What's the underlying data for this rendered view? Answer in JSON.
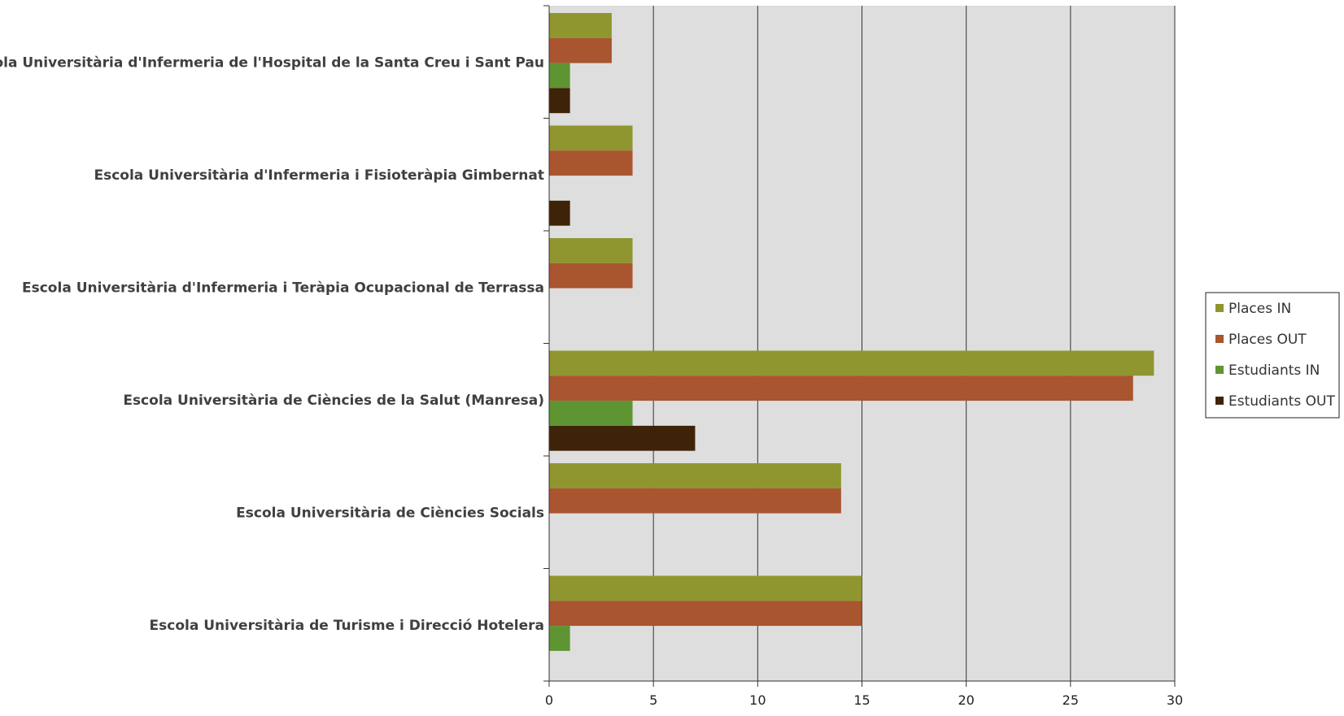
{
  "chart_data": {
    "type": "bar",
    "orientation": "horizontal",
    "categories": [
      "Escola Universitària d'Infermeria de l'Hospital de la Santa Creu i Sant Pau",
      "Escola Universitària d'Infermeria i Fisioteràpia Gimbernat",
      "Escola Universitària d'Infermeria i  Teràpia Ocupacional de Terrassa",
      "Escola Universitària de Ciències de la Salut (Manresa)",
      "Escola Universitària de Ciències Socials",
      "Escola Universitària de Turisme i Direcció Hotelera"
    ],
    "series": [
      {
        "name": "Places IN",
        "color": "#8f962f",
        "values": [
          3,
          4,
          4,
          29,
          14,
          15
        ]
      },
      {
        "name": "Places OUT",
        "color": "#a9552f",
        "values": [
          3,
          4,
          4,
          28,
          14,
          15
        ]
      },
      {
        "name": "Estudiants IN",
        "color": "#5f9433",
        "values": [
          1,
          0,
          0,
          4,
          0,
          1
        ]
      },
      {
        "name": "Estudiants OUT",
        "color": "#3f2308",
        "values": [
          1,
          1,
          0,
          7,
          0,
          0
        ]
      }
    ],
    "xlim": [
      0,
      30
    ],
    "xticks": [
      0,
      5,
      10,
      15,
      20,
      25,
      30
    ],
    "grid": true,
    "legend_position": "right",
    "plot_background": "#dedede",
    "gridline_color": "#333333"
  }
}
